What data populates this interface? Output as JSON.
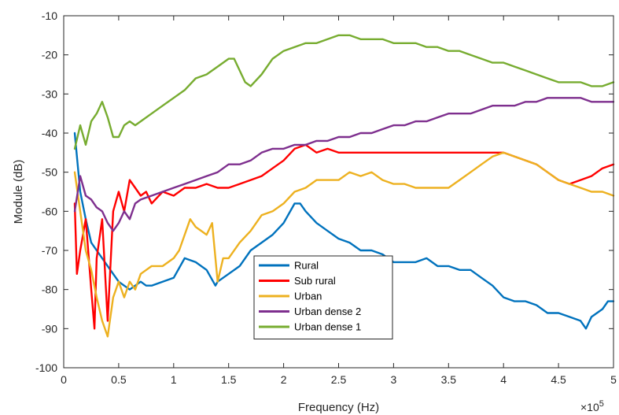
{
  "chart_data": {
    "type": "line",
    "xlabel": "Frequency (Hz)",
    "ylabel": "Module (dB)",
    "x_multiplier_label": "×10",
    "x_multiplier_exponent": "5",
    "xlim": [
      0,
      5
    ],
    "ylim": [
      -100,
      -10
    ],
    "xticks": [
      "0",
      "0.5",
      "1",
      "1.5",
      "2",
      "2.5",
      "3",
      "3.5",
      "4",
      "4.5",
      "5"
    ],
    "yticks": [
      "-10",
      "-20",
      "-30",
      "-40",
      "-50",
      "-60",
      "-70",
      "-80",
      "-90",
      "-100"
    ],
    "grid": false,
    "legend_position": "bottom-center",
    "series": [
      {
        "name": "Rural",
        "color": "#0072BD",
        "x": [
          0.1,
          0.15,
          0.2,
          0.25,
          0.3,
          0.35,
          0.4,
          0.45,
          0.5,
          0.55,
          0.6,
          0.65,
          0.7,
          0.75,
          0.8,
          0.9,
          1.0,
          1.1,
          1.2,
          1.3,
          1.38,
          1.4,
          1.5,
          1.6,
          1.7,
          1.8,
          1.9,
          2.0,
          2.1,
          2.15,
          2.2,
          2.3,
          2.4,
          2.5,
          2.6,
          2.7,
          2.8,
          2.9,
          3.0,
          3.1,
          3.2,
          3.3,
          3.4,
          3.5,
          3.6,
          3.7,
          3.8,
          3.9,
          4.0,
          4.1,
          4.2,
          4.3,
          4.4,
          4.5,
          4.6,
          4.7,
          4.75,
          4.8,
          4.9,
          4.95,
          5.0
        ],
        "y": [
          -40,
          -55,
          -62,
          -68,
          -70,
          -72,
          -74,
          -76,
          -78,
          -79,
          -80,
          -79,
          -78,
          -79,
          -79,
          -78,
          -77,
          -72,
          -73,
          -75,
          -79,
          -78,
          -76,
          -74,
          -70,
          -68,
          -66,
          -63,
          -58,
          -58,
          -60,
          -63,
          -65,
          -67,
          -68,
          -70,
          -70,
          -71,
          -73,
          -73,
          -73,
          -72,
          -74,
          -74,
          -75,
          -75,
          -77,
          -79,
          -82,
          -83,
          -83,
          -84,
          -86,
          -86,
          -87,
          -88,
          -90,
          -87,
          -85,
          -83,
          -83
        ]
      },
      {
        "name": "Sub rural",
        "color": "#FF0000",
        "x": [
          0.1,
          0.12,
          0.15,
          0.2,
          0.25,
          0.28,
          0.3,
          0.35,
          0.4,
          0.45,
          0.5,
          0.55,
          0.6,
          0.65,
          0.7,
          0.75,
          0.8,
          0.9,
          1.0,
          1.1,
          1.2,
          1.3,
          1.4,
          1.5,
          1.6,
          1.7,
          1.8,
          1.9,
          2.0,
          2.1,
          2.2,
          2.3,
          2.4,
          2.5,
          2.6,
          2.7,
          2.8,
          2.9,
          3.0,
          3.2,
          3.4,
          3.6,
          3.8,
          4.0,
          4.1,
          4.2,
          4.3,
          4.4,
          4.5,
          4.6,
          4.7,
          4.8,
          4.9,
          5.0
        ],
        "y": [
          -58,
          -76,
          -70,
          -62,
          -80,
          -90,
          -72,
          -62,
          -88,
          -60,
          -55,
          -60,
          -52,
          -54,
          -56,
          -55,
          -58,
          -55,
          -56,
          -54,
          -54,
          -53,
          -54,
          -54,
          -53,
          -52,
          -51,
          -49,
          -47,
          -44,
          -43,
          -45,
          -44,
          -45,
          -45,
          -45,
          -45,
          -45,
          -45,
          -45,
          -45,
          -45,
          -45,
          -45,
          -46,
          -47,
          -48,
          -50,
          -52,
          -53,
          -52,
          -51,
          -49,
          -48
        ]
      },
      {
        "name": "Urban",
        "color": "#EDB120",
        "x": [
          0.1,
          0.15,
          0.2,
          0.25,
          0.3,
          0.35,
          0.4,
          0.45,
          0.5,
          0.55,
          0.6,
          0.65,
          0.7,
          0.8,
          0.9,
          1.0,
          1.05,
          1.1,
          1.15,
          1.2,
          1.3,
          1.35,
          1.4,
          1.45,
          1.5,
          1.6,
          1.7,
          1.8,
          1.9,
          2.0,
          2.1,
          2.2,
          2.3,
          2.4,
          2.5,
          2.6,
          2.7,
          2.8,
          2.9,
          3.0,
          3.1,
          3.2,
          3.3,
          3.4,
          3.5,
          3.6,
          3.7,
          3.8,
          3.9,
          4.0,
          4.1,
          4.2,
          4.3,
          4.4,
          4.5,
          4.6,
          4.7,
          4.8,
          4.9,
          5.0
        ],
        "y": [
          -50,
          -60,
          -70,
          -75,
          -82,
          -88,
          -92,
          -82,
          -78,
          -82,
          -78,
          -80,
          -76,
          -74,
          -74,
          -72,
          -70,
          -66,
          -62,
          -64,
          -66,
          -63,
          -78,
          -72,
          -72,
          -68,
          -65,
          -61,
          -60,
          -58,
          -55,
          -54,
          -52,
          -52,
          -52,
          -50,
          -51,
          -50,
          -52,
          -53,
          -53,
          -54,
          -54,
          -54,
          -54,
          -52,
          -50,
          -48,
          -46,
          -45,
          -46,
          -47,
          -48,
          -50,
          -52,
          -53,
          -54,
          -55,
          -55,
          -56
        ]
      },
      {
        "name": "Urban dense 2",
        "color": "#7E2F8E",
        "x": [
          0.1,
          0.15,
          0.2,
          0.25,
          0.3,
          0.35,
          0.4,
          0.45,
          0.5,
          0.55,
          0.6,
          0.65,
          0.7,
          0.8,
          0.9,
          1.0,
          1.1,
          1.2,
          1.3,
          1.4,
          1.5,
          1.6,
          1.7,
          1.8,
          1.9,
          2.0,
          2.1,
          2.2,
          2.3,
          2.4,
          2.5,
          2.6,
          2.7,
          2.8,
          2.9,
          3.0,
          3.1,
          3.2,
          3.3,
          3.4,
          3.5,
          3.6,
          3.7,
          3.8,
          3.9,
          4.0,
          4.1,
          4.2,
          4.3,
          4.4,
          4.5,
          4.6,
          4.7,
          4.8,
          4.9,
          5.0
        ],
        "y": [
          -60,
          -51,
          -56,
          -57,
          -59,
          -60,
          -63,
          -65,
          -63,
          -60,
          -62,
          -58,
          -57,
          -56,
          -55,
          -54,
          -53,
          -52,
          -51,
          -50,
          -48,
          -48,
          -47,
          -45,
          -44,
          -44,
          -43,
          -43,
          -42,
          -42,
          -41,
          -41,
          -40,
          -40,
          -39,
          -38,
          -38,
          -37,
          -37,
          -36,
          -35,
          -35,
          -35,
          -34,
          -33,
          -33,
          -33,
          -32,
          -32,
          -31,
          -31,
          -31,
          -31,
          -32,
          -32,
          -32
        ]
      },
      {
        "name": "Urban dense 1",
        "color": "#77AC30",
        "x": [
          0.1,
          0.15,
          0.2,
          0.25,
          0.3,
          0.35,
          0.4,
          0.45,
          0.5,
          0.55,
          0.6,
          0.65,
          0.7,
          0.8,
          0.9,
          1.0,
          1.1,
          1.2,
          1.3,
          1.4,
          1.5,
          1.55,
          1.6,
          1.65,
          1.7,
          1.8,
          1.9,
          2.0,
          2.1,
          2.2,
          2.3,
          2.4,
          2.5,
          2.6,
          2.7,
          2.8,
          2.9,
          3.0,
          3.1,
          3.2,
          3.3,
          3.4,
          3.5,
          3.6,
          3.7,
          3.8,
          3.9,
          4.0,
          4.1,
          4.2,
          4.3,
          4.4,
          4.5,
          4.6,
          4.7,
          4.8,
          4.9,
          5.0
        ],
        "y": [
          -44,
          -38,
          -43,
          -37,
          -35,
          -32,
          -36,
          -41,
          -41,
          -38,
          -37,
          -38,
          -37,
          -35,
          -33,
          -31,
          -29,
          -26,
          -25,
          -23,
          -21,
          -21,
          -24,
          -27,
          -28,
          -25,
          -21,
          -19,
          -18,
          -17,
          -17,
          -16,
          -15,
          -15,
          -16,
          -16,
          -16,
          -17,
          -17,
          -17,
          -18,
          -18,
          -19,
          -19,
          -20,
          -21,
          -22,
          -22,
          -23,
          -24,
          -25,
          -26,
          -27,
          -27,
          -27,
          -28,
          -28,
          -27
        ]
      }
    ]
  }
}
